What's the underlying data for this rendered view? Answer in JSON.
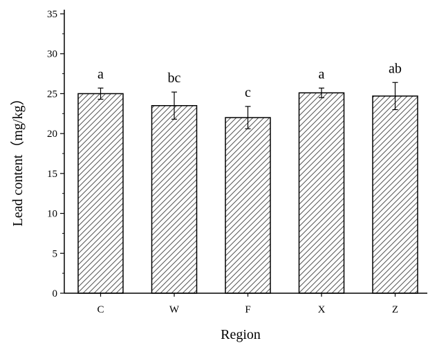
{
  "chart_data": {
    "type": "bar",
    "categories": [
      "C",
      "W",
      "F",
      "X",
      "Z"
    ],
    "values": [
      25.0,
      23.5,
      22.0,
      25.1,
      24.7
    ],
    "errors": [
      0.7,
      1.7,
      1.4,
      0.6,
      1.7
    ],
    "significance": [
      "a",
      "bc",
      "c",
      "a",
      "ab"
    ],
    "xlabel": "Region",
    "ylabel": "Lead content（mg/kg）",
    "ylim": [
      0,
      35
    ],
    "yticks": [
      "0",
      "5",
      "10",
      "15",
      "20",
      "25",
      "30",
      "35"
    ],
    "grid": false,
    "bar_fill": "hatched",
    "colors": {
      "axis": "#000000",
      "hatch": "#555555",
      "bar_edge": "#000000"
    }
  }
}
